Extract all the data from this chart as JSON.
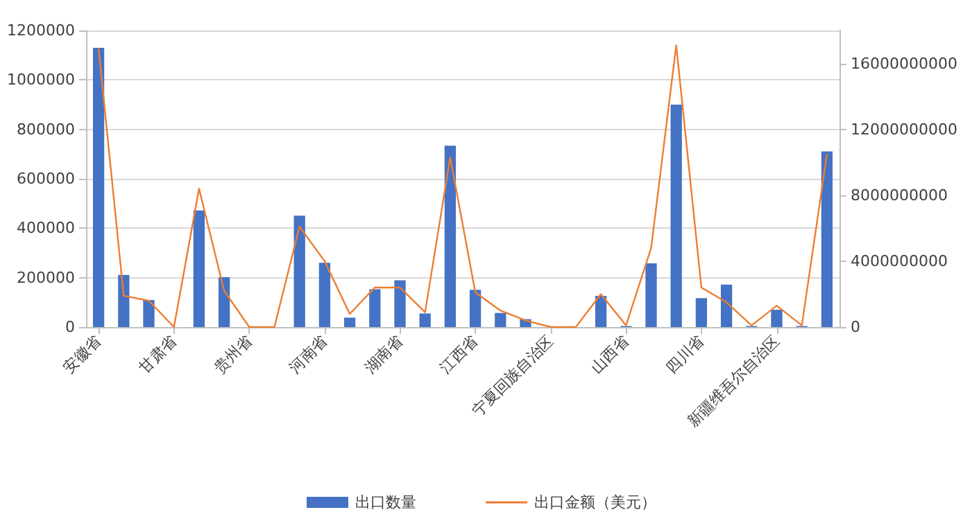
{
  "chart_data": {
    "type": "bar",
    "categories": [
      "安徽省",
      null,
      null,
      "甘肃省",
      null,
      null,
      "贵州省",
      null,
      null,
      "河南省",
      null,
      null,
      "湖南省",
      null,
      null,
      "江西省",
      null,
      null,
      "宁夏回族自治区",
      null,
      null,
      "山西省",
      null,
      null,
      "四川省",
      null,
      null,
      "新疆维吾尔自治区",
      null,
      null
    ],
    "series": [
      {
        "name": "出口数量",
        "color": "#4472c4",
        "values": [
          1130000,
          211000,
          109000,
          0,
          472000,
          202000,
          null,
          0,
          451000,
          260000,
          38000,
          153000,
          189000,
          55000,
          734000,
          151000,
          57000,
          32000,
          0,
          0,
          126000,
          4000,
          258000,
          900000,
          117000,
          172000,
          4000,
          70000,
          4000,
          711000
        ]
      },
      {
        "name": "出口金额（美元）",
        "type": "line",
        "axis": "y2",
        "color": "#ed7d31",
        "values": [
          16900000000,
          1900000000,
          1600000000,
          0,
          8400000000,
          2200000000,
          0,
          0,
          6100000000,
          4000000000,
          800000000,
          2400000000,
          2400000000,
          900000000,
          10300000000,
          2100000000,
          1000000000,
          400000000,
          0,
          0,
          2000000000,
          100000000,
          4800000000,
          17100000000,
          2400000000,
          1500000000,
          100000000,
          1300000000,
          100000000,
          10500000000
        ]
      }
    ],
    "ylim": [
      0,
      1200000
    ],
    "yticks": [
      0,
      200000,
      400000,
      600000,
      800000,
      1000000,
      1200000
    ],
    "y2lim": [
      0,
      18000000000
    ],
    "y2ticks": [
      0,
      4000000000,
      8000000000,
      12000000000,
      16000000000
    ],
    "grid": "y",
    "legend": "bottom",
    "marker": "none",
    "line_style": "solid"
  }
}
